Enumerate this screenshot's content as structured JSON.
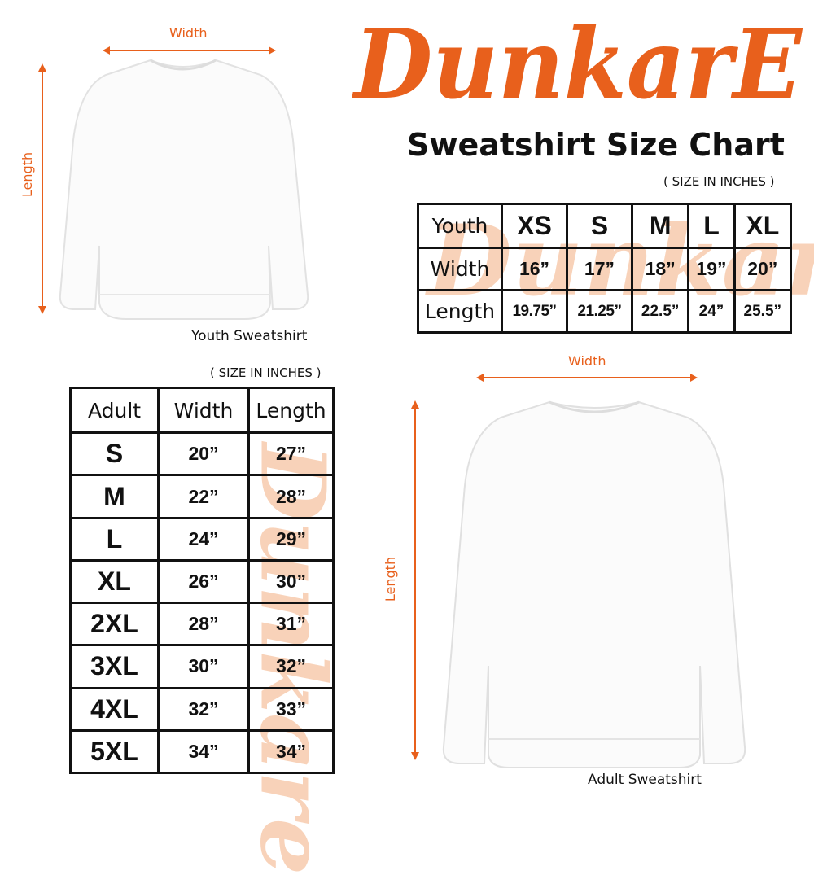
{
  "brand": {
    "logo_text": "DunkarE",
    "color": "#e8601c"
  },
  "title": "Sweatshirt Size Chart",
  "youth": {
    "image_caption": "Youth Sweatshirt",
    "width_label": "Width",
    "length_label": "Length",
    "unit_note": "( SIZE IN INCHES )",
    "table": {
      "header": [
        "Youth",
        "XS",
        "S",
        "M",
        "L",
        "XL"
      ],
      "rows": [
        [
          "Width",
          "16”",
          "17”",
          "18”",
          "19”",
          "20”"
        ],
        [
          "Length",
          "19.75”",
          "21.25”",
          "22.5”",
          "24”",
          "25.5”"
        ]
      ]
    }
  },
  "adult": {
    "image_caption": "Adult Sweatshirt",
    "width_label": "Width",
    "length_label": "Length",
    "unit_note": "( SIZE IN INCHES )",
    "table": {
      "header": [
        "Adult",
        "Width",
        "Length"
      ],
      "rows": [
        [
          "S",
          "20”",
          "27”"
        ],
        [
          "M",
          "22”",
          "28”"
        ],
        [
          "L",
          "24”",
          "29”"
        ],
        [
          "XL",
          "26”",
          "30”"
        ],
        [
          "2XL",
          "28”",
          "31”"
        ],
        [
          "3XL",
          "30”",
          "32”"
        ],
        [
          "4XL",
          "32”",
          "33”"
        ],
        [
          "5XL",
          "34”",
          "34”"
        ]
      ]
    }
  }
}
